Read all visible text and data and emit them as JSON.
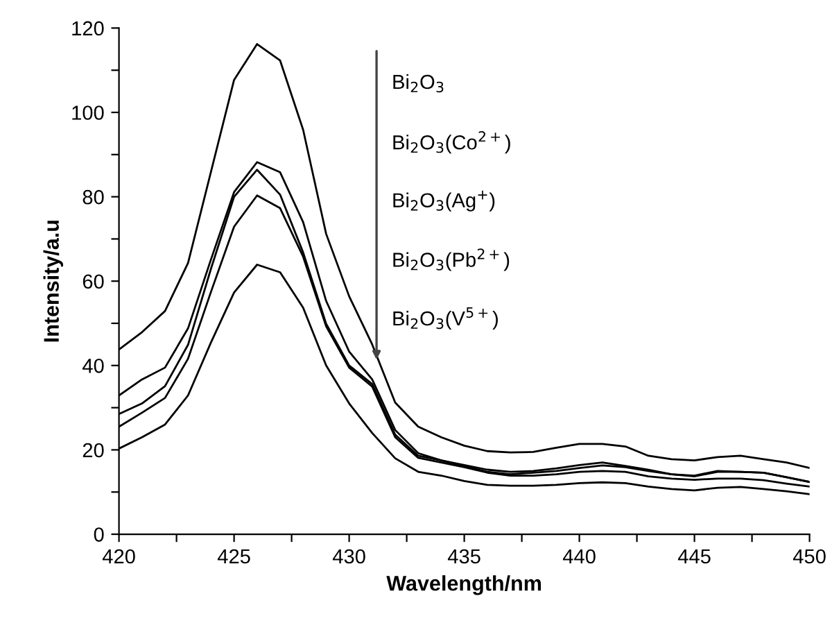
{
  "chart_data": {
    "type": "line",
    "x": [
      420,
      421,
      422,
      423,
      424,
      425,
      426,
      427,
      428,
      429,
      430,
      431,
      432,
      433,
      434,
      435,
      436,
      437,
      438,
      439,
      440,
      441,
      442,
      443,
      444,
      445,
      446,
      447,
      448,
      449,
      450
    ],
    "series": [
      {
        "color": "#000000",
        "values": [
          43.8,
          47.9,
          52.9,
          64.3,
          86,
          107.7,
          116.2,
          112.3,
          95.9,
          71.2,
          56.4,
          45,
          31.2,
          25.5,
          23,
          21,
          19.7,
          19.4,
          19.5,
          20.5,
          21.4,
          21.4,
          20.8,
          18.6,
          17.8,
          17.5,
          18.3,
          18.6,
          17.8,
          17,
          15.7
        ]
      },
      {
        "color": "#000000",
        "values": [
          32.9,
          36.7,
          39.5,
          48.8,
          65.2,
          81.1,
          88.2,
          85.8,
          74,
          55.3,
          43.3,
          36.7,
          24.7,
          19.2,
          17.5,
          16.4,
          15.3,
          14.8,
          15,
          15.6,
          16.4,
          17,
          16.2,
          15.3,
          14.2,
          13.7,
          14.8,
          14.8,
          14.6,
          13.5,
          12.4
        ]
      },
      {
        "color": "#000000",
        "values": [
          28.5,
          31,
          35.1,
          44.9,
          63,
          80,
          86.4,
          80.5,
          66.8,
          49.9,
          40,
          35.6,
          23.6,
          18.6,
          17.5,
          16.1,
          14.8,
          14.2,
          14.6,
          15,
          15.7,
          16.3,
          15.9,
          15,
          14.2,
          13.9,
          15,
          14.8,
          14.6,
          13.5,
          12.4
        ]
      },
      {
        "color": "#000000",
        "values": [
          25.5,
          28.8,
          32.3,
          41.6,
          57.5,
          72.9,
          80.3,
          77.3,
          65.8,
          49.3,
          39.5,
          35,
          23,
          18.1,
          17,
          15.9,
          14.6,
          13.9,
          13.9,
          14.2,
          14.8,
          15,
          14.8,
          13.7,
          13.2,
          12.9,
          13.2,
          13.2,
          12.8,
          12,
          11.3
        ]
      },
      {
        "color": "#000000",
        "values": [
          20.3,
          23,
          26,
          32.9,
          45.5,
          57.3,
          63.9,
          62.1,
          53.7,
          40,
          31,
          24,
          18,
          14.8,
          13.9,
          12.6,
          11.7,
          11.5,
          11.5,
          11.7,
          12.1,
          12.3,
          12.1,
          11.3,
          10.7,
          10.4,
          11,
          11.2,
          10.7,
          10.2,
          9.5
        ]
      }
    ],
    "xlabel": "Wavelength/nm",
    "ylabel": "Intensity/a.u",
    "xlim": [
      420,
      450
    ],
    "ylim": [
      0,
      120
    ],
    "xticks": [
      420,
      {
        "value": 422.5,
        "label": null
      },
      425,
      {
        "value": 427.5,
        "label": null
      },
      430,
      {
        "value": 432.5,
        "label": null
      },
      435,
      {
        "value": 437.5,
        "label": null
      },
      440,
      {
        "value": 442.5,
        "label": null
      },
      445,
      {
        "value": 447.5,
        "label": null
      },
      450
    ],
    "yticks": [
      0,
      {
        "value": 10,
        "label": null
      },
      20,
      {
        "value": 30,
        "label": null
      },
      40,
      {
        "value": 50,
        "label": null
      },
      60,
      {
        "value": 70,
        "label": null
      },
      80,
      {
        "value": 90,
        "label": null
      },
      100,
      {
        "value": 110,
        "label": null
      },
      120
    ],
    "annotations": [
      "Bi$_{2}$O$_{3}$",
      "Bi$_{2}$O$_{3}$(Co$^{2+}$)",
      "Bi$_{2}$O$_{3}$(Ag$^{+}$)",
      "Bi$_{2}$O$_{3}$(Pb$^{2+}$)",
      "Bi$_{2}$O$_{3}$(V$^{5+}$)"
    ]
  }
}
